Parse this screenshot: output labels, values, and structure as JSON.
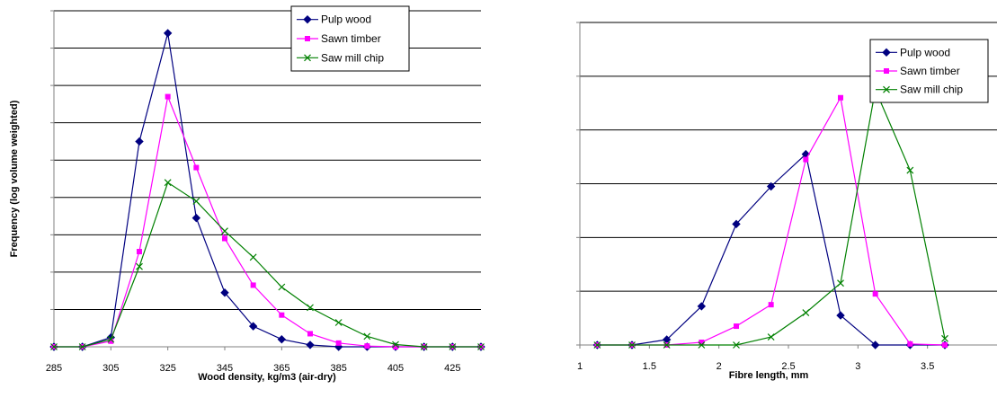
{
  "chart_data": [
    {
      "type": "line",
      "xlabel": "Wood density, kg/m3 (air-dry)",
      "ylabel": "Frequency (log volume weighted)",
      "xlim": [
        285,
        435
      ],
      "ylim": [
        0,
        9
      ],
      "x_ticks": [
        "285",
        "305",
        "325",
        "345",
        "365",
        "385",
        "405",
        "425"
      ],
      "y_tick_labels": false,
      "grid": "horizontal",
      "legend_position": "top-right",
      "x": [
        285,
        295,
        305,
        315,
        325,
        335,
        345,
        355,
        365,
        375,
        385,
        395,
        405,
        415,
        425,
        435
      ],
      "series": [
        {
          "name": "Pulp wood",
          "color": "#000080",
          "marker": "diamond",
          "values": [
            0,
            0,
            0.25,
            5.5,
            8.4,
            3.45,
            1.45,
            0.55,
            0.2,
            0.05,
            0,
            0,
            0,
            0,
            0,
            0
          ]
        },
        {
          "name": "Sawn timber",
          "color": "#ff00ff",
          "marker": "square",
          "values": [
            0,
            0,
            0.15,
            2.55,
            6.7,
            4.8,
            2.9,
            1.65,
            0.85,
            0.35,
            0.1,
            0.02,
            0,
            0,
            0,
            0
          ]
        },
        {
          "name": "Saw mill chip",
          "color": "#008000",
          "marker": "x",
          "values": [
            0,
            0,
            0.2,
            2.15,
            4.4,
            3.9,
            3.1,
            2.4,
            1.6,
            1.05,
            0.65,
            0.28,
            0.06,
            0,
            0,
            0
          ]
        }
      ]
    },
    {
      "type": "line",
      "xlabel": "Fibre length, mm",
      "ylabel": "",
      "xlim": [
        1,
        4
      ],
      "ylim": [
        0,
        6
      ],
      "x_ticks": [
        "1",
        "1.5",
        "2",
        "2.5",
        "3",
        "3.5"
      ],
      "y_tick_labels": false,
      "grid": "horizontal",
      "legend_position": "top-right",
      "series": [
        {
          "name": "Pulp wood",
          "color": "#000080",
          "marker": "diamond",
          "x": [
            1.125,
            1.375,
            1.625,
            1.875,
            2.125,
            2.375,
            2.625,
            2.875,
            3.125,
            3.375,
            3.625
          ],
          "values": [
            0,
            0,
            0.1,
            0.72,
            2.25,
            2.95,
            3.55,
            0.55,
            0,
            0,
            0
          ]
        },
        {
          "name": "Sawn timber",
          "color": "#ff00ff",
          "marker": "square",
          "x": [
            1.125,
            1.375,
            1.625,
            1.875,
            2.125,
            2.375,
            2.625,
            2.875,
            3.125,
            3.375,
            3.625
          ],
          "values": [
            0,
            0,
            0,
            0.05,
            0.35,
            0.75,
            3.45,
            4.6,
            0.95,
            0.02,
            0
          ]
        },
        {
          "name": "Saw mill chip",
          "color": "#008000",
          "marker": "x",
          "x": [
            1.125,
            1.375,
            1.625,
            1.875,
            2.125,
            2.375,
            2.625,
            2.875,
            3.125,
            3.375,
            3.625
          ],
          "values": [
            0,
            0,
            0,
            0,
            0,
            0.15,
            0.6,
            1.15,
            4.75,
            3.25,
            0.12
          ]
        }
      ]
    }
  ]
}
